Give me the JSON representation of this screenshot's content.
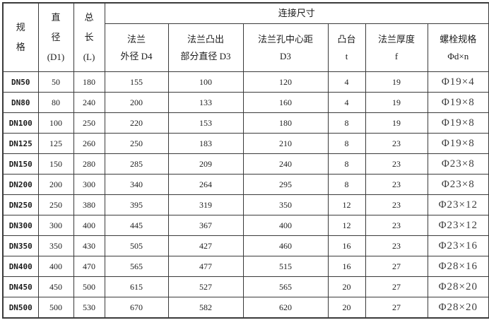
{
  "table": {
    "group_header": "连接尺寸",
    "columns": [
      {
        "id": "spec",
        "label": "规\n格"
      },
      {
        "id": "diameter-d1",
        "label": "直\n径\n(D1)"
      },
      {
        "id": "length-l",
        "label": "总\n长\n(L)"
      },
      {
        "id": "flange-od-d4",
        "label": "法兰\n外径 D4"
      },
      {
        "id": "flange-protrusion-d3",
        "label": "法兰凸出\n部分直径 D3"
      },
      {
        "id": "hole-center-d3",
        "label": "法兰孔中心距\nD3"
      },
      {
        "id": "boss-t",
        "label": "凸台\nt"
      },
      {
        "id": "thickness-f",
        "label": "法兰厚度\nf"
      },
      {
        "id": "bolt-spec",
        "label": "螺栓规格\nΦd×n"
      }
    ],
    "rows": [
      [
        "DN50",
        "50",
        "180",
        "155",
        "100",
        "120",
        "4",
        "19",
        "Φ19×4"
      ],
      [
        "DN80",
        "80",
        "240",
        "200",
        "133",
        "160",
        "4",
        "19",
        "Φ19×8"
      ],
      [
        "DN100",
        "100",
        "250",
        "220",
        "153",
        "180",
        "8",
        "19",
        "Φ19×8"
      ],
      [
        "DN125",
        "125",
        "260",
        "250",
        "183",
        "210",
        "8",
        "23",
        "Φ19×8"
      ],
      [
        "DN150",
        "150",
        "280",
        "285",
        "209",
        "240",
        "8",
        "23",
        "Φ23×8"
      ],
      [
        "DN200",
        "200",
        "300",
        "340",
        "264",
        "295",
        "8",
        "23",
        "Φ23×8"
      ],
      [
        "DN250",
        "250",
        "380",
        "395",
        "319",
        "350",
        "12",
        "23",
        "Φ23×12"
      ],
      [
        "DN300",
        "300",
        "400",
        "445",
        "367",
        "400",
        "12",
        "23",
        "Φ23×12"
      ],
      [
        "DN350",
        "350",
        "430",
        "505",
        "427",
        "460",
        "16",
        "23",
        "Φ23×16"
      ],
      [
        "DN400",
        "400",
        "470",
        "565",
        "477",
        "515",
        "16",
        "27",
        "Φ28×16"
      ],
      [
        "DN450",
        "450",
        "500",
        "615",
        "527",
        "565",
        "20",
        "27",
        "Φ28×20"
      ],
      [
        "DN500",
        "500",
        "530",
        "670",
        "582",
        "620",
        "20",
        "27",
        "Φ28×20"
      ]
    ]
  },
  "colors": {
    "border": "#3a3a3a",
    "text": "#1c1c1c",
    "bolt_text": "#3d3d3d",
    "background": "#ffffff"
  }
}
